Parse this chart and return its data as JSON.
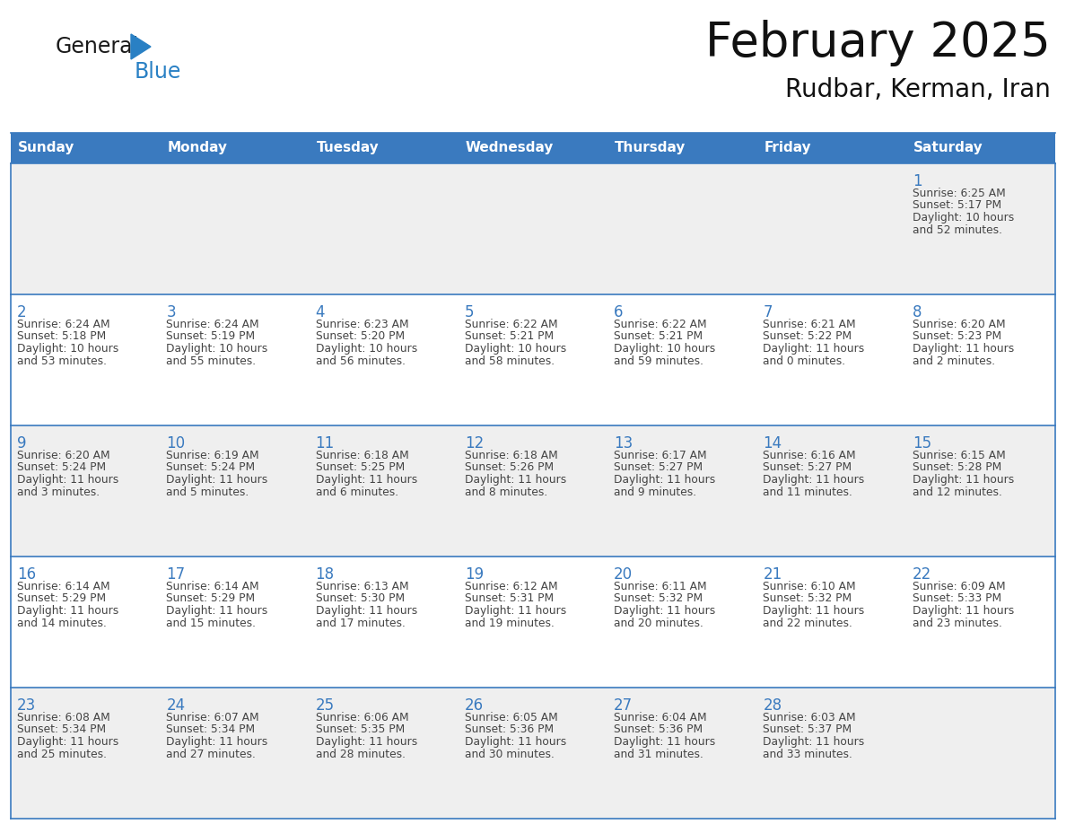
{
  "title": "February 2025",
  "subtitle": "Rudbar, Kerman, Iran",
  "header_color": "#3a7abf",
  "header_text_color": "#ffffff",
  "cell_bg_white": "#ffffff",
  "cell_bg_gray": "#efefef",
  "border_color": "#3a7abf",
  "days_of_week": [
    "Sunday",
    "Monday",
    "Tuesday",
    "Wednesday",
    "Thursday",
    "Friday",
    "Saturday"
  ],
  "day_number_color": "#3a7abf",
  "text_color": "#444444",
  "logo_general_color": "#1a1a1a",
  "logo_blue_color": "#2980c4",
  "calendar_data": [
    [
      null,
      null,
      null,
      null,
      null,
      null,
      {
        "day": "1",
        "sunrise": "6:25 AM",
        "sunset": "5:17 PM",
        "daylight": "10 hours",
        "daylight2": "and 52 minutes."
      }
    ],
    [
      {
        "day": "2",
        "sunrise": "6:24 AM",
        "sunset": "5:18 PM",
        "daylight": "10 hours",
        "daylight2": "and 53 minutes."
      },
      {
        "day": "3",
        "sunrise": "6:24 AM",
        "sunset": "5:19 PM",
        "daylight": "10 hours",
        "daylight2": "and 55 minutes."
      },
      {
        "day": "4",
        "sunrise": "6:23 AM",
        "sunset": "5:20 PM",
        "daylight": "10 hours",
        "daylight2": "and 56 minutes."
      },
      {
        "day": "5",
        "sunrise": "6:22 AM",
        "sunset": "5:21 PM",
        "daylight": "10 hours",
        "daylight2": "and 58 minutes."
      },
      {
        "day": "6",
        "sunrise": "6:22 AM",
        "sunset": "5:21 PM",
        "daylight": "10 hours",
        "daylight2": "and 59 minutes."
      },
      {
        "day": "7",
        "sunrise": "6:21 AM",
        "sunset": "5:22 PM",
        "daylight": "11 hours",
        "daylight2": "and 0 minutes."
      },
      {
        "day": "8",
        "sunrise": "6:20 AM",
        "sunset": "5:23 PM",
        "daylight": "11 hours",
        "daylight2": "and 2 minutes."
      }
    ],
    [
      {
        "day": "9",
        "sunrise": "6:20 AM",
        "sunset": "5:24 PM",
        "daylight": "11 hours",
        "daylight2": "and 3 minutes."
      },
      {
        "day": "10",
        "sunrise": "6:19 AM",
        "sunset": "5:24 PM",
        "daylight": "11 hours",
        "daylight2": "and 5 minutes."
      },
      {
        "day": "11",
        "sunrise": "6:18 AM",
        "sunset": "5:25 PM",
        "daylight": "11 hours",
        "daylight2": "and 6 minutes."
      },
      {
        "day": "12",
        "sunrise": "6:18 AM",
        "sunset": "5:26 PM",
        "daylight": "11 hours",
        "daylight2": "and 8 minutes."
      },
      {
        "day": "13",
        "sunrise": "6:17 AM",
        "sunset": "5:27 PM",
        "daylight": "11 hours",
        "daylight2": "and 9 minutes."
      },
      {
        "day": "14",
        "sunrise": "6:16 AM",
        "sunset": "5:27 PM",
        "daylight": "11 hours",
        "daylight2": "and 11 minutes."
      },
      {
        "day": "15",
        "sunrise": "6:15 AM",
        "sunset": "5:28 PM",
        "daylight": "11 hours",
        "daylight2": "and 12 minutes."
      }
    ],
    [
      {
        "day": "16",
        "sunrise": "6:14 AM",
        "sunset": "5:29 PM",
        "daylight": "11 hours",
        "daylight2": "and 14 minutes."
      },
      {
        "day": "17",
        "sunrise": "6:14 AM",
        "sunset": "5:29 PM",
        "daylight": "11 hours",
        "daylight2": "and 15 minutes."
      },
      {
        "day": "18",
        "sunrise": "6:13 AM",
        "sunset": "5:30 PM",
        "daylight": "11 hours",
        "daylight2": "and 17 minutes."
      },
      {
        "day": "19",
        "sunrise": "6:12 AM",
        "sunset": "5:31 PM",
        "daylight": "11 hours",
        "daylight2": "and 19 minutes."
      },
      {
        "day": "20",
        "sunrise": "6:11 AM",
        "sunset": "5:32 PM",
        "daylight": "11 hours",
        "daylight2": "and 20 minutes."
      },
      {
        "day": "21",
        "sunrise": "6:10 AM",
        "sunset": "5:32 PM",
        "daylight": "11 hours",
        "daylight2": "and 22 minutes."
      },
      {
        "day": "22",
        "sunrise": "6:09 AM",
        "sunset": "5:33 PM",
        "daylight": "11 hours",
        "daylight2": "and 23 minutes."
      }
    ],
    [
      {
        "day": "23",
        "sunrise": "6:08 AM",
        "sunset": "5:34 PM",
        "daylight": "11 hours",
        "daylight2": "and 25 minutes."
      },
      {
        "day": "24",
        "sunrise": "6:07 AM",
        "sunset": "5:34 PM",
        "daylight": "11 hours",
        "daylight2": "and 27 minutes."
      },
      {
        "day": "25",
        "sunrise": "6:06 AM",
        "sunset": "5:35 PM",
        "daylight": "11 hours",
        "daylight2": "and 28 minutes."
      },
      {
        "day": "26",
        "sunrise": "6:05 AM",
        "sunset": "5:36 PM",
        "daylight": "11 hours",
        "daylight2": "and 30 minutes."
      },
      {
        "day": "27",
        "sunrise": "6:04 AM",
        "sunset": "5:36 PM",
        "daylight": "11 hours",
        "daylight2": "and 31 minutes."
      },
      {
        "day": "28",
        "sunrise": "6:03 AM",
        "sunset": "5:37 PM",
        "daylight": "11 hours",
        "daylight2": "and 33 minutes."
      },
      null
    ]
  ],
  "num_cols": 7,
  "num_rows": 5,
  "fig_width": 11.88,
  "fig_height": 9.18,
  "dpi": 100
}
